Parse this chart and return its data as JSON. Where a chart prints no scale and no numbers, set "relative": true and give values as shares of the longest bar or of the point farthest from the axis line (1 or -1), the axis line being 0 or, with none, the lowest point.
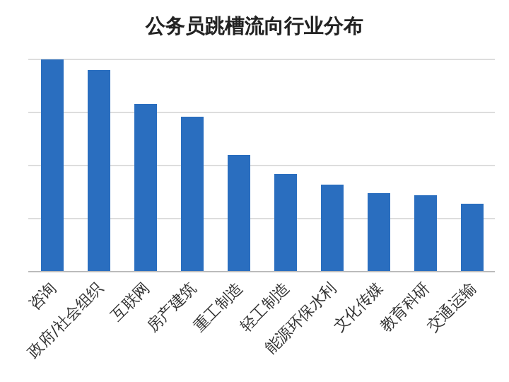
{
  "chart_data": {
    "type": "bar",
    "title": "公务员跳槽流向行业分布",
    "categories": [
      "咨询",
      "政府/社会组织",
      "互联网",
      "房产建筑",
      "重工制造",
      "轻工制造",
      "能源环保水利",
      "文化传媒",
      "教育科研",
      "交通运输"
    ],
    "values": [
      1,
      0.95,
      0.79,
      0.73,
      0.55,
      0.46,
      0.41,
      0.37,
      0.36,
      0.32
    ],
    "relative": true,
    "color": "#2a6ebf",
    "grid": "y"
  }
}
